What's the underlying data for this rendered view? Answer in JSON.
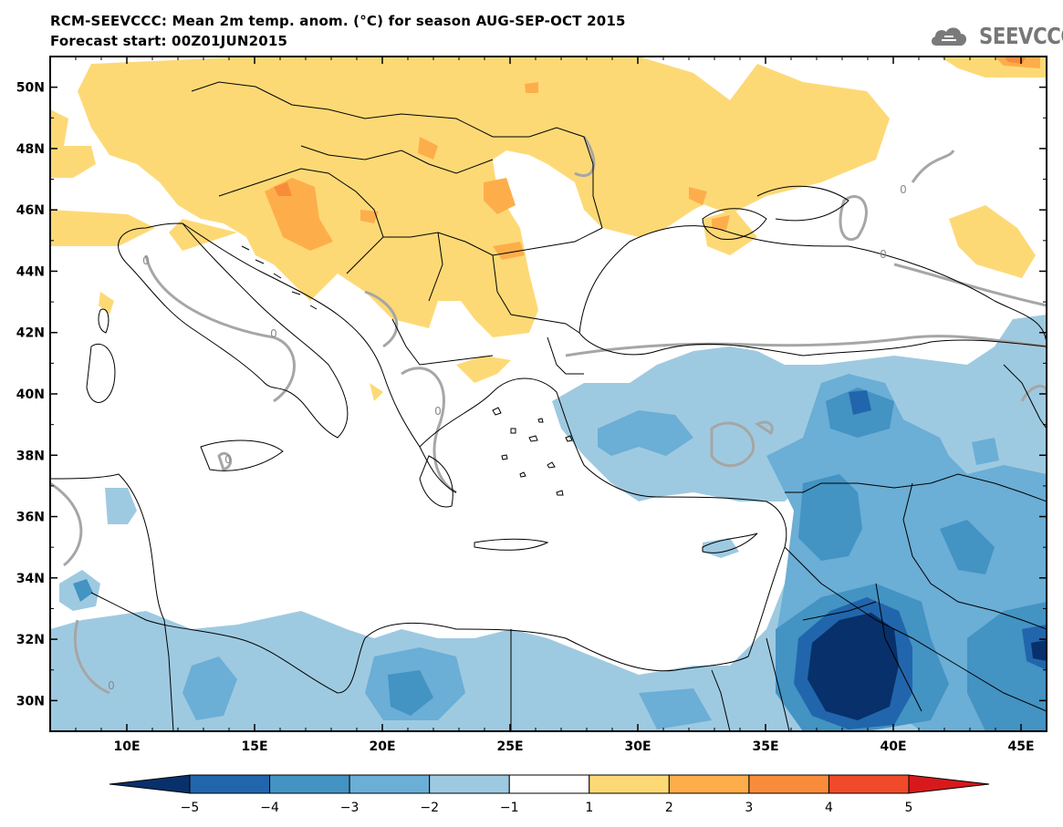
{
  "header": {
    "title": "RCM-SEEVCCC: Mean 2m temp. anom. (°C) for season AUG-SEP-OCT 2015",
    "subtitle": "Forecast start: 00Z01JUN2015",
    "logo_text": "SEEVCCC"
  },
  "map": {
    "lon_range": [
      7,
      46
    ],
    "lat_range": [
      29,
      51
    ],
    "lat_ticks": [
      "50N",
      "48N",
      "46N",
      "44N",
      "42N",
      "40N",
      "38N",
      "36N",
      "34N",
      "32N",
      "30N"
    ],
    "lon_ticks": [
      "10E",
      "15E",
      "20E",
      "25E",
      "30E",
      "35E",
      "40E",
      "45E"
    ],
    "contour_label": "0"
  },
  "colorbar": {
    "labels": [
      "−5",
      "−4",
      "−3",
      "−2",
      "−1",
      "1",
      "2",
      "3",
      "4",
      "5"
    ],
    "colors": [
      "#08306b",
      "#2166ac",
      "#4393c3",
      "#6baed6",
      "#9ecae1",
      "#ffffff",
      "#fdd976",
      "#fdae4b",
      "#f98c3a",
      "#f04a2a",
      "#d7191c"
    ]
  },
  "palette": {
    "pos1": "#fdd976",
    "pos2": "#fdae4b",
    "pos3": "#f98c3a",
    "neg1": "#9ecae1",
    "neg2": "#6baed6",
    "neg3": "#4393c3",
    "neg4": "#2166ac",
    "neg5": "#08306b",
    "zero_line": "#a6a6a6"
  }
}
